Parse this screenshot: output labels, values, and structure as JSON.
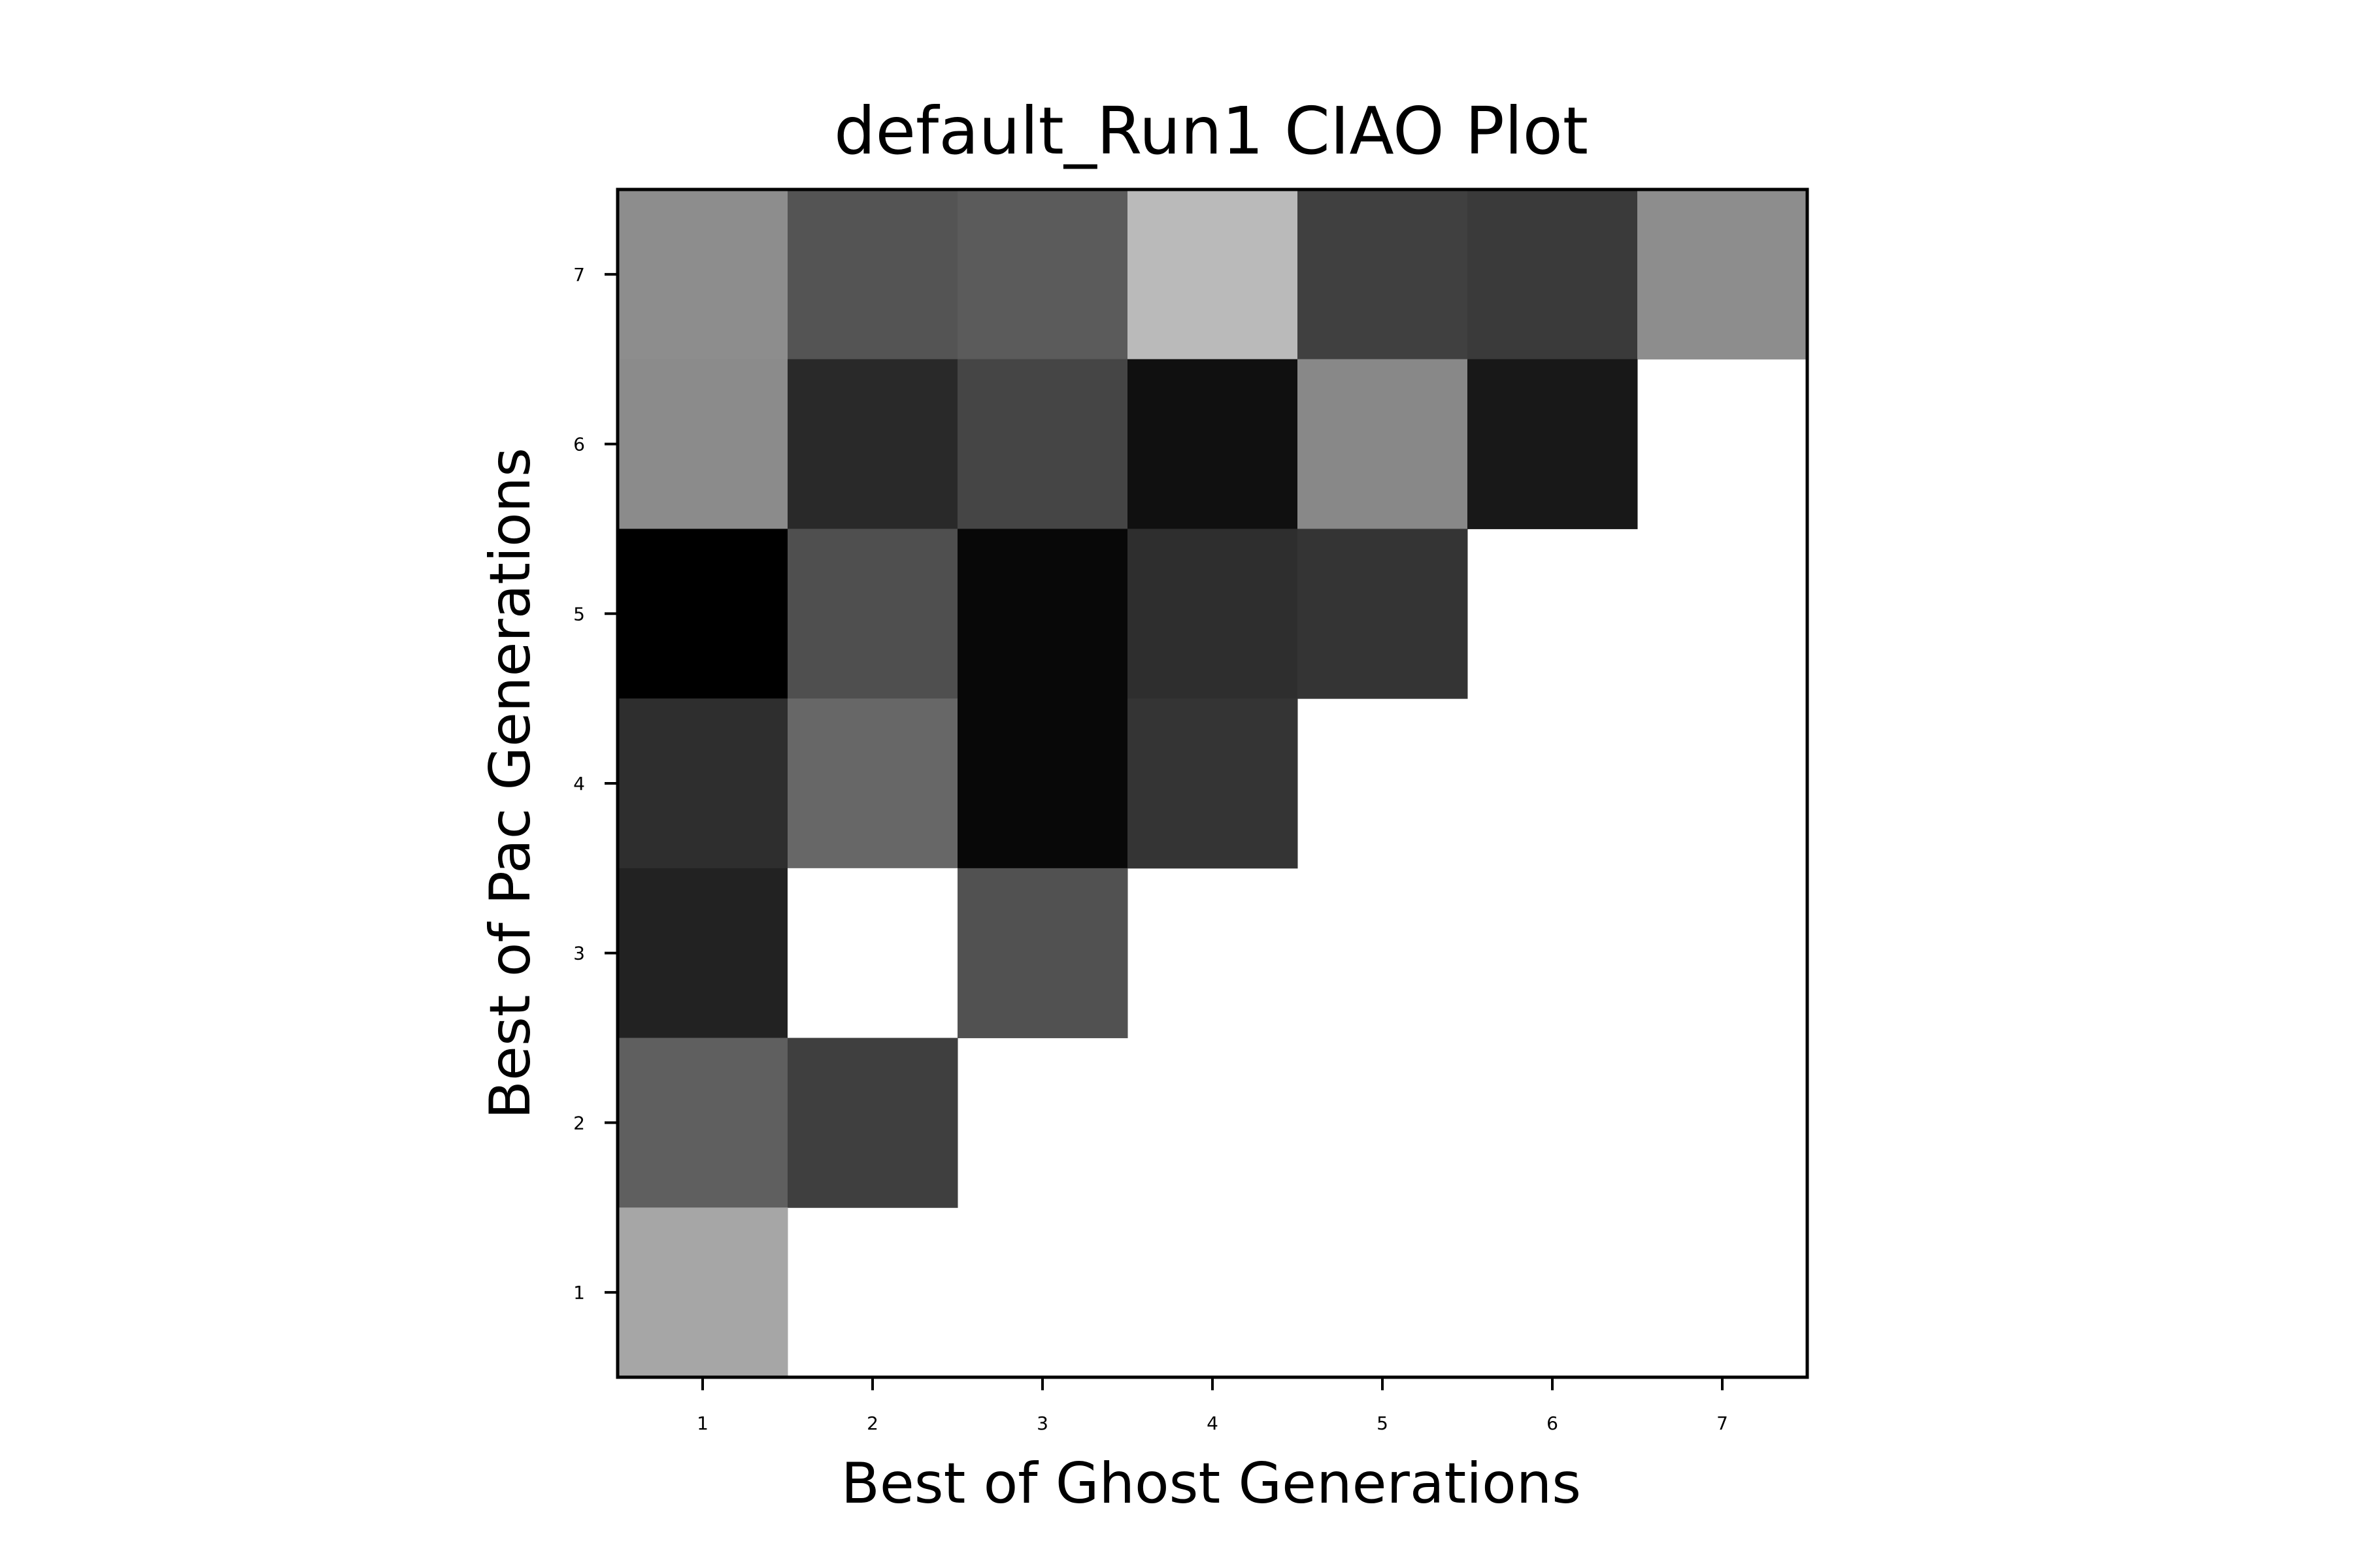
{
  "chart_data": {
    "type": "heatmap",
    "title": "default_Run1 CIAO Plot",
    "xlabel": "Best of Ghost Generations",
    "ylabel": "Best of Pac Generations",
    "x_ticks": [
      "1",
      "2",
      "3",
      "4",
      "5",
      "6",
      "7"
    ],
    "y_ticks": [
      "1",
      "2",
      "3",
      "4",
      "5",
      "6",
      "7"
    ],
    "xlim": [
      0.5,
      7.5
    ],
    "ylim": [
      0.5,
      7.5
    ],
    "colormap": "grayscale (black = low, white = high)",
    "legend": "none",
    "grid": false,
    "cells": [
      {
        "x": 1,
        "y": 7,
        "value": 0.55,
        "color": "#8d8d8d"
      },
      {
        "x": 2,
        "y": 7,
        "value": 0.33,
        "color": "#545454"
      },
      {
        "x": 3,
        "y": 7,
        "value": 0.36,
        "color": "#5b5b5b"
      },
      {
        "x": 4,
        "y": 7,
        "value": 0.73,
        "color": "#bababa"
      },
      {
        "x": 5,
        "y": 7,
        "value": 0.25,
        "color": "#404040"
      },
      {
        "x": 6,
        "y": 7,
        "value": 0.23,
        "color": "#3a3a3a"
      },
      {
        "x": 7,
        "y": 7,
        "value": 0.55,
        "color": "#8d8d8d"
      },
      {
        "x": 1,
        "y": 6,
        "value": 0.54,
        "color": "#8b8b8b"
      },
      {
        "x": 2,
        "y": 6,
        "value": 0.16,
        "color": "#292929"
      },
      {
        "x": 3,
        "y": 6,
        "value": 0.27,
        "color": "#454545"
      },
      {
        "x": 4,
        "y": 6,
        "value": 0.06,
        "color": "#101010"
      },
      {
        "x": 5,
        "y": 6,
        "value": 0.53,
        "color": "#888888"
      },
      {
        "x": 6,
        "y": 6,
        "value": 0.09,
        "color": "#181818"
      },
      {
        "x": 1,
        "y": 5,
        "value": 0.0,
        "color": "#000000"
      },
      {
        "x": 2,
        "y": 5,
        "value": 0.31,
        "color": "#4f4f4f"
      },
      {
        "x": 3,
        "y": 5,
        "value": 0.03,
        "color": "#080808"
      },
      {
        "x": 4,
        "y": 5,
        "value": 0.18,
        "color": "#2e2e2e"
      },
      {
        "x": 5,
        "y": 5,
        "value": 0.2,
        "color": "#343434"
      },
      {
        "x": 1,
        "y": 4,
        "value": 0.18,
        "color": "#2e2e2e"
      },
      {
        "x": 2,
        "y": 4,
        "value": 0.4,
        "color": "#676767"
      },
      {
        "x": 3,
        "y": 4,
        "value": 0.03,
        "color": "#080808"
      },
      {
        "x": 4,
        "y": 4,
        "value": 0.2,
        "color": "#343434"
      },
      {
        "x": 1,
        "y": 3,
        "value": 0.13,
        "color": "#222222"
      },
      {
        "x": 2,
        "y": 3,
        "value": 1.0,
        "color": "#ffffff"
      },
      {
        "x": 3,
        "y": 3,
        "value": 0.32,
        "color": "#515151"
      },
      {
        "x": 1,
        "y": 2,
        "value": 0.37,
        "color": "#5f5f5f"
      },
      {
        "x": 2,
        "y": 2,
        "value": 0.25,
        "color": "#3f3f3f"
      },
      {
        "x": 1,
        "y": 1,
        "value": 0.64,
        "color": "#a6a6a6"
      }
    ]
  }
}
